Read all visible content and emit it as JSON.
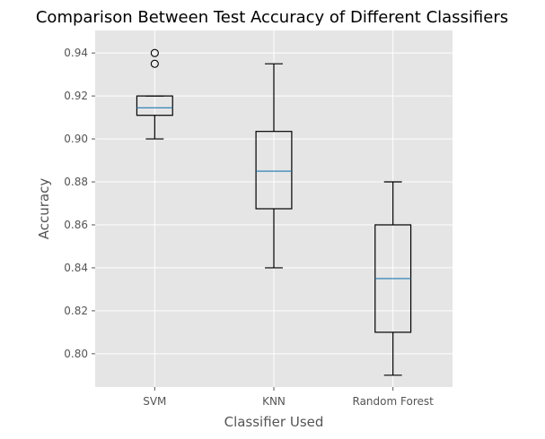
{
  "chart_data": {
    "type": "box",
    "title": "Comparison Between Test Accuracy of Different Classifiers",
    "xlabel": "Classifier Used",
    "ylabel": "Accuracy",
    "categories": [
      "SVM",
      "KNN",
      "Random Forest"
    ],
    "ylim": [
      0.7845,
      0.9505
    ],
    "yticks": [
      0.8,
      0.82,
      0.84,
      0.86,
      0.88,
      0.9,
      0.92,
      0.94
    ],
    "ytick_labels": [
      "0.80",
      "0.82",
      "0.84",
      "0.86",
      "0.88",
      "0.90",
      "0.92",
      "0.94"
    ],
    "grid": true,
    "boxes": [
      {
        "name": "SVM",
        "whisker_low": 0.9,
        "q1": 0.911,
        "median": 0.9145,
        "q3": 0.92,
        "whisker_high": 0.92,
        "outliers": [
          0.935,
          0.94
        ]
      },
      {
        "name": "KNN",
        "whisker_low": 0.84,
        "q1": 0.8675,
        "median": 0.885,
        "q3": 0.9035,
        "whisker_high": 0.935,
        "outliers": []
      },
      {
        "name": "Random Forest",
        "whisker_low": 0.79,
        "q1": 0.81,
        "median": 0.835,
        "q3": 0.86,
        "whisker_high": 0.88,
        "outliers": []
      }
    ],
    "colors": {
      "background": "#E5E5E5",
      "grid": "#FFFFFF",
      "box": "#000000",
      "median": "#1F77B4",
      "text": "#555555"
    }
  }
}
